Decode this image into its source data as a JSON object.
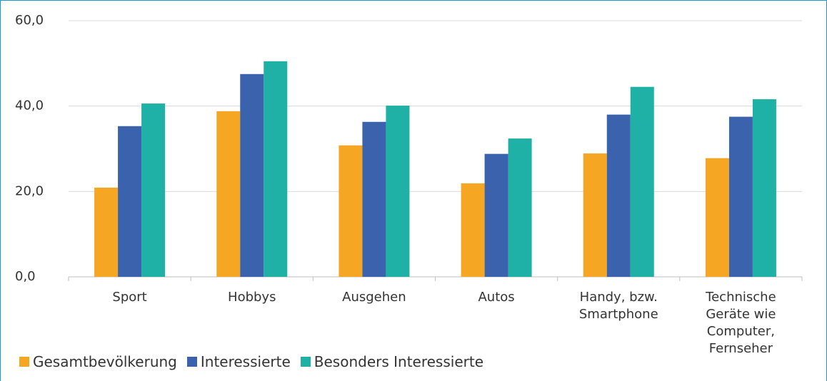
{
  "chart_data": {
    "type": "bar",
    "categories": [
      "Sport",
      "Hobbys",
      "Ausgehen",
      "Autos",
      "Handy, bzw. Smartphone",
      "Technische Geräte wie Computer, Fernseher"
    ],
    "series": [
      {
        "name": "Gesamtbevölkerung",
        "color": "#f5a623",
        "values": [
          20.9,
          38.8,
          30.8,
          21.9,
          28.9,
          27.8
        ]
      },
      {
        "name": "Interessierte",
        "color": "#3a62ad",
        "values": [
          35.3,
          47.5,
          36.3,
          28.8,
          38.0,
          37.5
        ]
      },
      {
        "name": "Besonders Interessierte",
        "color": "#1fb1a5",
        "values": [
          40.6,
          50.5,
          40.1,
          32.4,
          44.5,
          41.6
        ]
      }
    ],
    "ylim": [
      0,
      60
    ],
    "yticks": [
      {
        "value": 0,
        "label": "0,0"
      },
      {
        "value": 20,
        "label": "20,0"
      },
      {
        "value": 40,
        "label": "40,0"
      },
      {
        "value": 60,
        "label": "60,0"
      }
    ],
    "grid": true,
    "legend": "bottom-left"
  }
}
